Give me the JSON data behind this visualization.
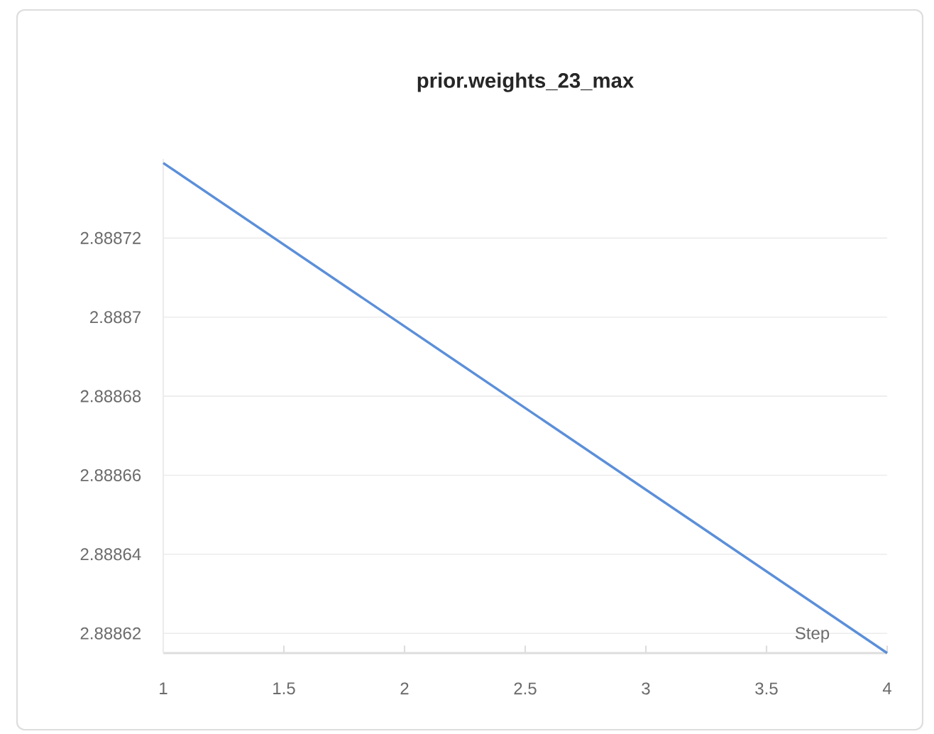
{
  "chart_data": {
    "type": "line",
    "title": "prior.weights_23_max",
    "xlabel": "Step",
    "x": [
      1,
      4
    ],
    "series": [
      {
        "color": "#5b8fd9",
        "values": [
          2.888739,
          2.888615
        ]
      }
    ],
    "xlim": [
      1,
      4
    ],
    "ylim": [
      2.888615,
      2.88874
    ],
    "xticks": [
      1,
      1.5,
      2,
      2.5,
      3,
      3.5,
      4
    ],
    "yticks": [
      2.88862,
      2.88864,
      2.88866,
      2.88868,
      2.8887,
      2.88872
    ],
    "grid": "y",
    "marker": "none",
    "line_style": "solid"
  }
}
